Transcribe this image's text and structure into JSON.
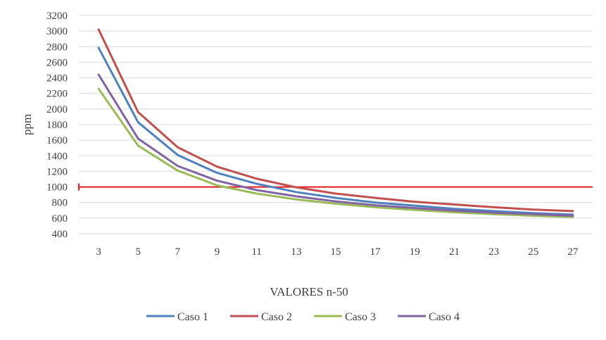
{
  "chart_data": {
    "type": "line",
    "title": "",
    "xlabel": "VALORES n-50",
    "ylabel": "ppm",
    "ylim": [
      400,
      3200
    ],
    "yticks": [
      400,
      600,
      800,
      1000,
      1200,
      1400,
      1600,
      1800,
      2000,
      2200,
      2400,
      2600,
      2800,
      3000,
      3200
    ],
    "categories": [
      "3",
      "5",
      "7",
      "9",
      "11",
      "13",
      "15",
      "17",
      "19",
      "21",
      "23",
      "25",
      "27"
    ],
    "grid": true,
    "legend_position": "bottom",
    "series": [
      {
        "name": "Caso 1",
        "color": "#4F81BD",
        "values": [
          2785,
          1830,
          1410,
          1180,
          1040,
          935,
          860,
          800,
          760,
          720,
          690,
          665,
          645
        ]
      },
      {
        "name": "Caso 2",
        "color": "#C0504D",
        "values": [
          3020,
          1960,
          1510,
          1260,
          1105,
          995,
          915,
          860,
          810,
          775,
          740,
          710,
          690
        ]
      },
      {
        "name": "Caso 3",
        "color": "#9BBB59",
        "values": [
          2260,
          1530,
          1210,
          1020,
          915,
          840,
          785,
          740,
          705,
          675,
          650,
          630,
          615
        ]
      },
      {
        "name": "Caso 4",
        "color": "#8064A2",
        "values": [
          2440,
          1620,
          1270,
          1080,
          960,
          880,
          815,
          765,
          730,
          695,
          670,
          650,
          630
        ]
      }
    ],
    "reference_line": {
      "value": 1000,
      "color": "#E31A1C"
    }
  }
}
